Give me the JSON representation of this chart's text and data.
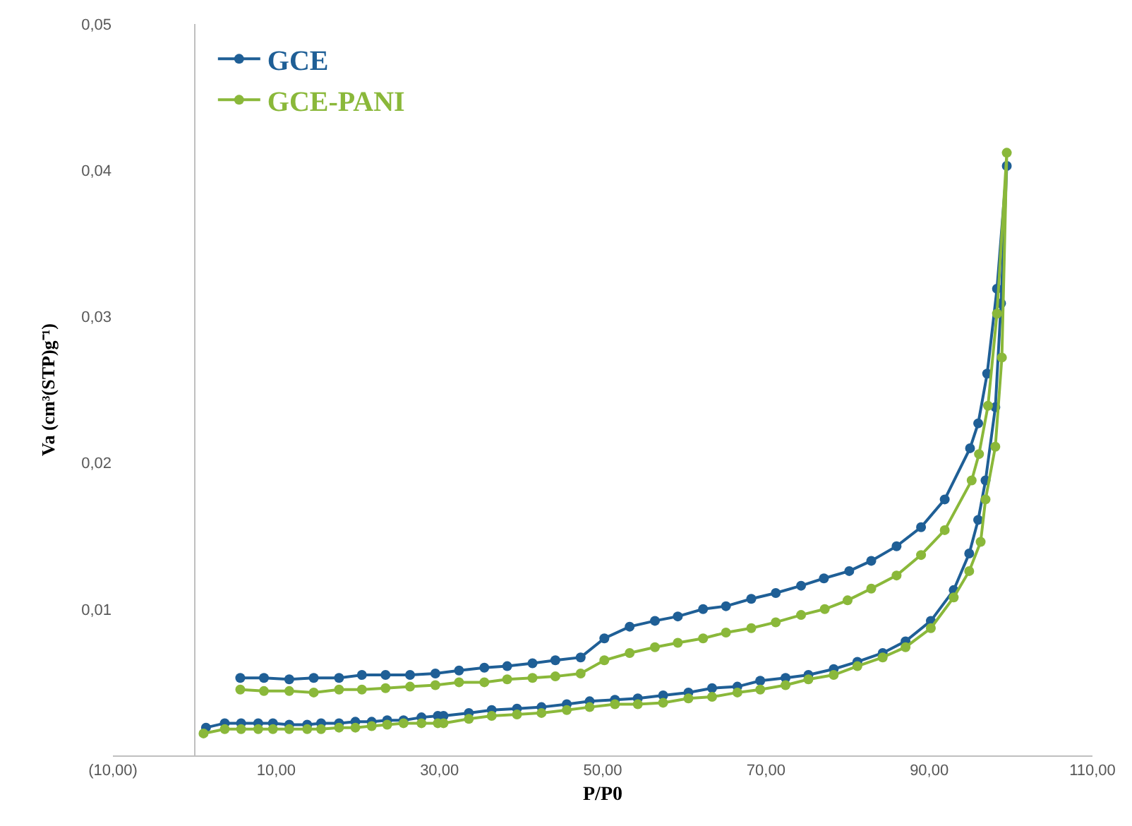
{
  "chart_data": {
    "type": "line",
    "xlabel": "P/P0",
    "ylabel": "Va (cm³(STP)g⁻¹)",
    "xlim": [
      -10,
      110
    ],
    "xticks": [
      {
        "value": -10,
        "label": "(10,00)"
      },
      {
        "value": 10,
        "label": "10,00"
      },
      {
        "value": 30,
        "label": "30,00"
      },
      {
        "value": 50,
        "label": "50,00"
      },
      {
        "value": 70,
        "label": "70,00"
      },
      {
        "value": 90,
        "label": "90,00"
      },
      {
        "value": 110,
        "label": "110,00"
      }
    ],
    "ylim": [
      0,
      0.05
    ],
    "yticks": [
      {
        "value": 0,
        "label": null
      },
      {
        "value": 0.01,
        "label": "0,01"
      },
      {
        "value": 0.02,
        "label": "0,02"
      },
      {
        "value": 0.03,
        "label": "0,03"
      },
      {
        "value": 0.04,
        "label": "0,04"
      },
      {
        "value": 0.05,
        "label": "0,05"
      }
    ],
    "legend": "top left",
    "marker": "circle",
    "line_style": "solid",
    "series": [
      {
        "name": "GCE",
        "color": "#1f5f96",
        "x": [
          1.4,
          3.7,
          5.7,
          7.8,
          9.6,
          11.6,
          13.8,
          15.5,
          17.7,
          19.7,
          21.7,
          23.6,
          25.6,
          27.8,
          29.8,
          30.5,
          33.6,
          36.4,
          39.5,
          42.5,
          45.6,
          48.4,
          51.5,
          54.3,
          57.4,
          60.5,
          63.4,
          66.5,
          69.3,
          72.4,
          75.2,
          78.3,
          81.2,
          84.3,
          87.1,
          90.2,
          93.0,
          94.9,
          96.0,
          96.9,
          98.1,
          98.8,
          99.5,
          98.3,
          97.1,
          96.0,
          95.0,
          91.9,
          89.0,
          86.0,
          82.9,
          80.2,
          77.1,
          74.3,
          71.2,
          68.2,
          65.1,
          62.3,
          59.2,
          56.4,
          53.3,
          50.2,
          47.3,
          44.2,
          41.4,
          38.3,
          35.5,
          32.4,
          29.5,
          26.4,
          23.4,
          20.5,
          17.7,
          14.6,
          11.6,
          8.5,
          5.6
        ],
        "values": [
          0.0019,
          0.0022,
          0.0022,
          0.0022,
          0.0022,
          0.0021,
          0.0021,
          0.0022,
          0.0022,
          0.0023,
          0.0023,
          0.0024,
          0.0024,
          0.0026,
          0.0027,
          0.0027,
          0.0029,
          0.0031,
          0.0032,
          0.0033,
          0.0035,
          0.0037,
          0.0038,
          0.0039,
          0.0041,
          0.0043,
          0.0046,
          0.0047,
          0.0051,
          0.0053,
          0.0055,
          0.0059,
          0.0064,
          0.007,
          0.0078,
          0.0092,
          0.0113,
          0.0138,
          0.0161,
          0.0188,
          0.0238,
          0.0309,
          0.0403,
          0.0319,
          0.0261,
          0.0227,
          0.021,
          0.0175,
          0.0156,
          0.0143,
          0.0133,
          0.0126,
          0.0121,
          0.0116,
          0.0111,
          0.0107,
          0.0102,
          0.01,
          0.0095,
          0.0092,
          0.0088,
          0.008,
          0.0067,
          0.0065,
          0.0063,
          0.0061,
          0.006,
          0.0058,
          0.0056,
          0.0055,
          0.0055,
          0.0055,
          0.0053,
          0.0053,
          0.0052,
          0.0053,
          0.0053
        ]
      },
      {
        "name": "GCE-PANI",
        "color": "#8ab83a",
        "x": [
          1.1,
          3.7,
          5.7,
          7.8,
          9.6,
          11.6,
          13.8,
          15.5,
          17.7,
          19.7,
          21.7,
          23.6,
          25.6,
          27.8,
          29.8,
          30.5,
          33.6,
          36.4,
          39.5,
          42.5,
          45.6,
          48.4,
          51.5,
          54.3,
          57.4,
          60.5,
          63.4,
          66.5,
          69.3,
          72.4,
          75.2,
          78.3,
          81.2,
          84.3,
          87.1,
          90.2,
          93.0,
          94.9,
          96.3,
          96.9,
          98.1,
          98.9,
          99.5,
          98.3,
          97.2,
          96.1,
          95.2,
          91.9,
          89.0,
          86.0,
          82.9,
          80.0,
          77.2,
          74.3,
          71.2,
          68.2,
          65.1,
          62.3,
          59.2,
          56.4,
          53.3,
          50.2,
          47.3,
          44.2,
          41.4,
          38.3,
          35.5,
          32.4,
          29.5,
          26.4,
          23.4,
          20.5,
          17.7,
          14.6,
          11.6,
          8.5,
          5.6
        ],
        "values": [
          0.0015,
          0.0018,
          0.0018,
          0.0018,
          0.0018,
          0.0018,
          0.0018,
          0.0018,
          0.0019,
          0.0019,
          0.002,
          0.0021,
          0.0022,
          0.0022,
          0.0022,
          0.0022,
          0.0025,
          0.0027,
          0.0028,
          0.0029,
          0.0031,
          0.0033,
          0.0035,
          0.0035,
          0.0036,
          0.0039,
          0.004,
          0.0043,
          0.0045,
          0.0048,
          0.0052,
          0.0055,
          0.0061,
          0.0067,
          0.0074,
          0.0087,
          0.0108,
          0.0126,
          0.0146,
          0.0175,
          0.0211,
          0.0272,
          0.0412,
          0.0302,
          0.0239,
          0.0206,
          0.0188,
          0.0154,
          0.0137,
          0.0123,
          0.0114,
          0.0106,
          0.01,
          0.0096,
          0.0091,
          0.0087,
          0.0084,
          0.008,
          0.0077,
          0.0074,
          0.007,
          0.0065,
          0.0056,
          0.0054,
          0.0053,
          0.0052,
          0.005,
          0.005,
          0.0048,
          0.0047,
          0.0046,
          0.0045,
          0.0045,
          0.0043,
          0.0044,
          0.0044,
          0.0045
        ]
      }
    ]
  }
}
